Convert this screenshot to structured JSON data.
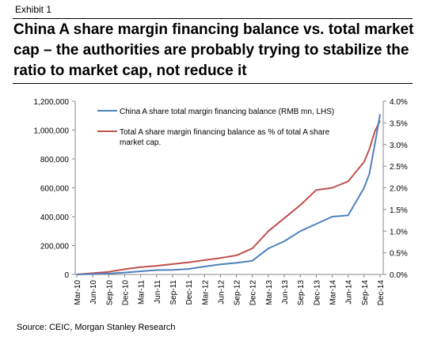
{
  "header": {
    "exhibit": "Exhibit 1",
    "title": "China A share margin financing balance vs. total market cap – the authorities are probably trying to stabilize the ratio to market cap, not reduce it"
  },
  "footer": {
    "source": "Source: CEIC, Morgan Stanley Research"
  },
  "colors": {
    "series_balance": "#4f81bd",
    "series_ratio": "#c0504d",
    "axis": "#888888"
  },
  "chart_data": {
    "type": "line",
    "title": "",
    "left_axis": {
      "label": "",
      "ylim": [
        0,
        1200000
      ],
      "ticks": [
        0,
        200000,
        400000,
        600000,
        800000,
        1000000,
        1200000
      ],
      "tick_labels": [
        "0",
        "200,000",
        "400,000",
        "600,000",
        "800,000",
        "1,000,000",
        "1,200,000"
      ]
    },
    "right_axis": {
      "label": "",
      "ylim": [
        0,
        4.0
      ],
      "ticks": [
        0,
        0.5,
        1.0,
        1.5,
        2.0,
        2.5,
        3.0,
        3.5,
        4.0
      ],
      "tick_labels": [
        "0.0%",
        "0.5%",
        "1.0%",
        "1.5%",
        "2.0%",
        "2.5%",
        "3.0%",
        "3.5%",
        "4.0%"
      ]
    },
    "x_tick_labels": [
      "Mar-10",
      "Jun-10",
      "Sep-10",
      "Dec-10",
      "Mar-11",
      "Jun-11",
      "Sep-11",
      "Dec-11",
      "Mar-12",
      "Jun-12",
      "Sep-12",
      "Dec-12",
      "Mar-13",
      "Jun-13",
      "Sep-13",
      "Dec-13",
      "Mar-14",
      "Jun-14",
      "Sep-14",
      "Dec-14"
    ],
    "grid": false,
    "legend_position": "top-center",
    "series": [
      {
        "name": "China A share total margin financing balance (RMB mn, LHS)",
        "axis": "left",
        "x": [
          "Mar-10",
          "Jun-10",
          "Sep-10",
          "Dec-10",
          "Mar-11",
          "Jun-11",
          "Sep-11",
          "Dec-11",
          "Mar-12",
          "Jun-12",
          "Sep-12",
          "Dec-12",
          "Mar-13",
          "Jun-13",
          "Sep-13",
          "Dec-13",
          "Mar-14",
          "Jun-14",
          "Sep-14",
          "Oct-14",
          "Nov-14",
          "Dec-14"
        ],
        "values": [
          0,
          3000,
          6000,
          13000,
          22000,
          30000,
          32000,
          38000,
          55000,
          70000,
          80000,
          95000,
          180000,
          230000,
          300000,
          350000,
          400000,
          410000,
          600000,
          700000,
          900000,
          1110000
        ]
      },
      {
        "name": "Total A share margin financing balance as % of total A share market cap.",
        "axis": "right",
        "x": [
          "Mar-10",
          "Jun-10",
          "Sep-10",
          "Dec-10",
          "Mar-11",
          "Jun-11",
          "Sep-11",
          "Dec-11",
          "Mar-12",
          "Jun-12",
          "Sep-12",
          "Dec-12",
          "Mar-13",
          "Jun-13",
          "Sep-13",
          "Dec-13",
          "Mar-14",
          "Jun-14",
          "Sep-14",
          "Oct-14",
          "Nov-14",
          "Dec-14"
        ],
        "values": [
          0.0,
          0.03,
          0.06,
          0.12,
          0.17,
          0.2,
          0.24,
          0.28,
          0.33,
          0.38,
          0.44,
          0.6,
          1.0,
          1.3,
          1.6,
          1.95,
          2.0,
          2.15,
          2.6,
          2.9,
          3.3,
          3.55
        ]
      }
    ]
  }
}
